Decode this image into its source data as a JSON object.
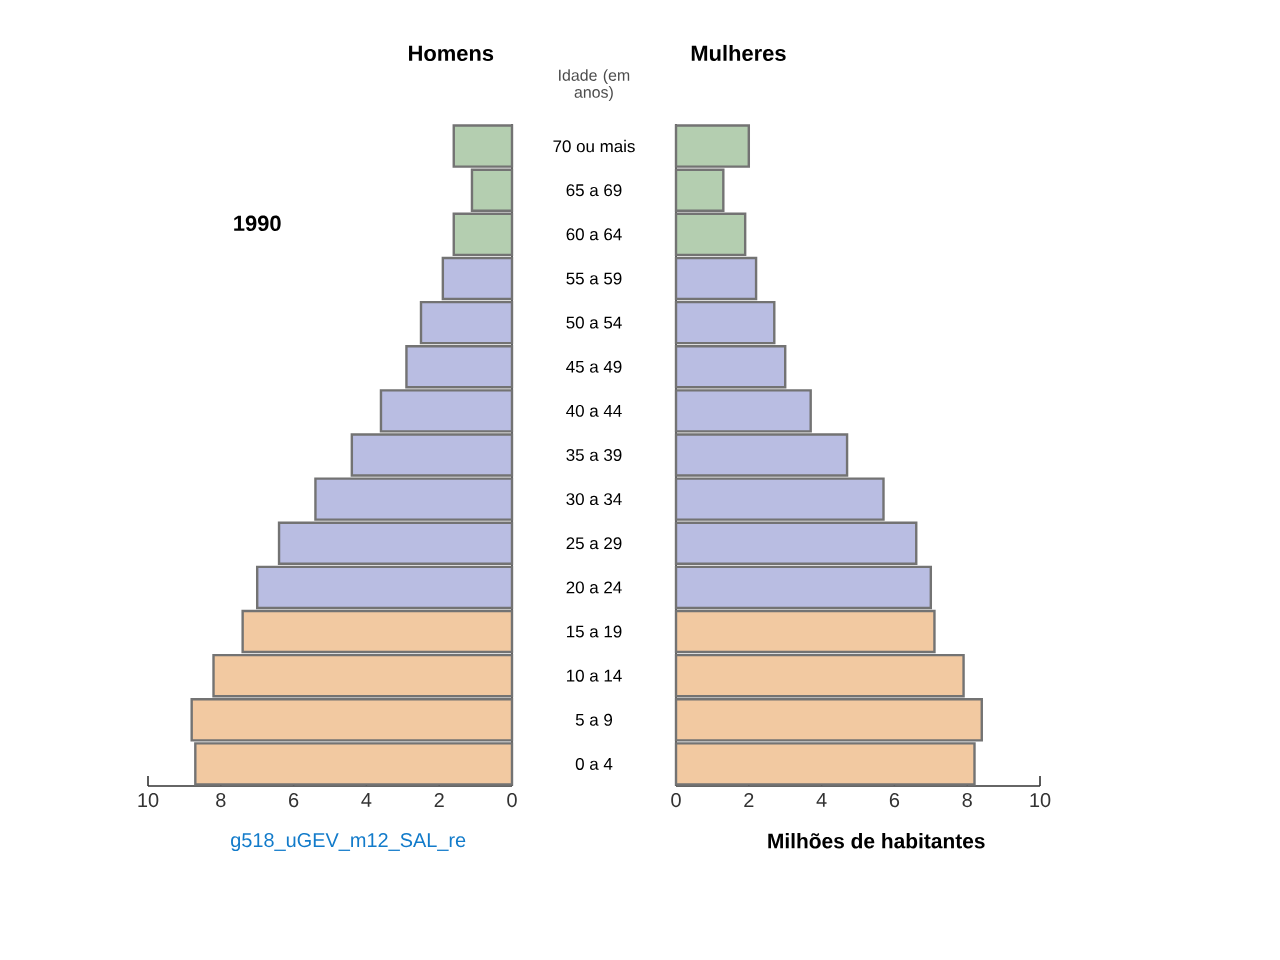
{
  "chart_data": [
    {
      "type": "bar",
      "orientation": "horizontal",
      "title": "Homens",
      "ylabel": "Idade (em anos)",
      "categories": [
        "70 ou mais",
        "65 a 69",
        "60 a 64",
        "55 a 59",
        "50 a 54",
        "45 a 49",
        "40 a 44",
        "35 a 39",
        "30 a 34",
        "25 a 29",
        "20 a 24",
        "15 a 19",
        "10 a 14",
        "5 a 9",
        "0 a 4"
      ],
      "values": [
        1.6,
        1.1,
        1.6,
        1.9,
        2.5,
        2.9,
        3.6,
        4.4,
        5.4,
        6.4,
        7.0,
        7.4,
        8.2,
        8.8,
        8.7
      ],
      "colors": [
        "#b4ceb0",
        "#b4ceb0",
        "#b4ceb0",
        "#b9bde2",
        "#b9bde2",
        "#b9bde2",
        "#b9bde2",
        "#b9bde2",
        "#b9bde2",
        "#b9bde2",
        "#b9bde2",
        "#f2c9a1",
        "#f2c9a1",
        "#f2c9a1",
        "#f2c9a1"
      ],
      "xlim": [
        10,
        0
      ],
      "xticks": [
        10,
        8,
        6,
        4,
        2,
        0
      ],
      "annotations": [
        "1990",
        "g518_uGEV_m12_SAL_re"
      ]
    },
    {
      "type": "bar",
      "orientation": "horizontal",
      "title": "Mulheres",
      "xlabel": "Milhões de habitantes",
      "values": [
        2.0,
        1.3,
        1.9,
        2.2,
        2.7,
        3.0,
        3.7,
        4.7,
        5.7,
        6.6,
        7.0,
        7.1,
        7.9,
        8.4,
        8.2
      ],
      "colors": [
        "#b4ceb0",
        "#b4ceb0",
        "#b4ceb0",
        "#b9bde2",
        "#b9bde2",
        "#b9bde2",
        "#b9bde2",
        "#b9bde2",
        "#b9bde2",
        "#b9bde2",
        "#b9bde2",
        "#f2c9a1",
        "#f2c9a1",
        "#f2c9a1",
        "#f2c9a1"
      ],
      "xlim": [
        0,
        10
      ],
      "xticks": [
        0,
        2,
        4,
        6,
        8,
        10
      ],
      "tick_labels": "x"
    }
  ]
}
